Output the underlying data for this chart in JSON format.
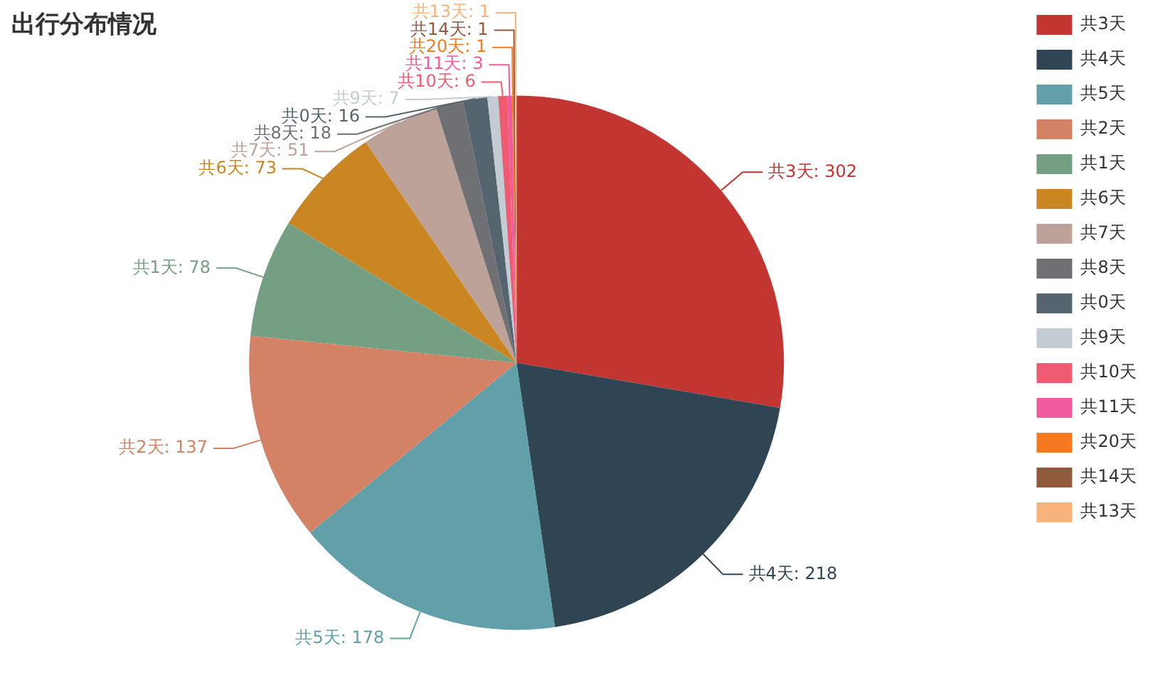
{
  "chart_data": {
    "type": "pie",
    "title": "出行分布情况",
    "categories": [
      "共3天",
      "共4天",
      "共5天",
      "共2天",
      "共1天",
      "共6天",
      "共7天",
      "共8天",
      "共0天",
      "共9天",
      "共10天",
      "共11天",
      "共20天",
      "共14天",
      "共13天"
    ],
    "values": [
      302,
      218,
      178,
      137,
      78,
      73,
      51,
      18,
      16,
      7,
      6,
      3,
      1,
      1,
      1
    ],
    "colors": [
      "#c23531",
      "#2f4554",
      "#61a0a8",
      "#d48265",
      "#749f83",
      "#ca8622",
      "#bda29a",
      "#6e7074",
      "#546570",
      "#c4ccd3",
      "#f05b72",
      "#ef5b9c",
      "#f47920",
      "#905a3d",
      "#fab27b"
    ],
    "value_labels": [
      "共3天: 302",
      "共4天: 218",
      "共5天: 178",
      "共2天: 137",
      "共1天: 78",
      "共6天: 73",
      "共7天: 51",
      "共8天: 18",
      "共0天: 16",
      "共9天: 7",
      "共10天: 6",
      "共11天: 3",
      "共20天: 1",
      "共14天: 1",
      "共13天: 1"
    ],
    "legend": "top right"
  }
}
